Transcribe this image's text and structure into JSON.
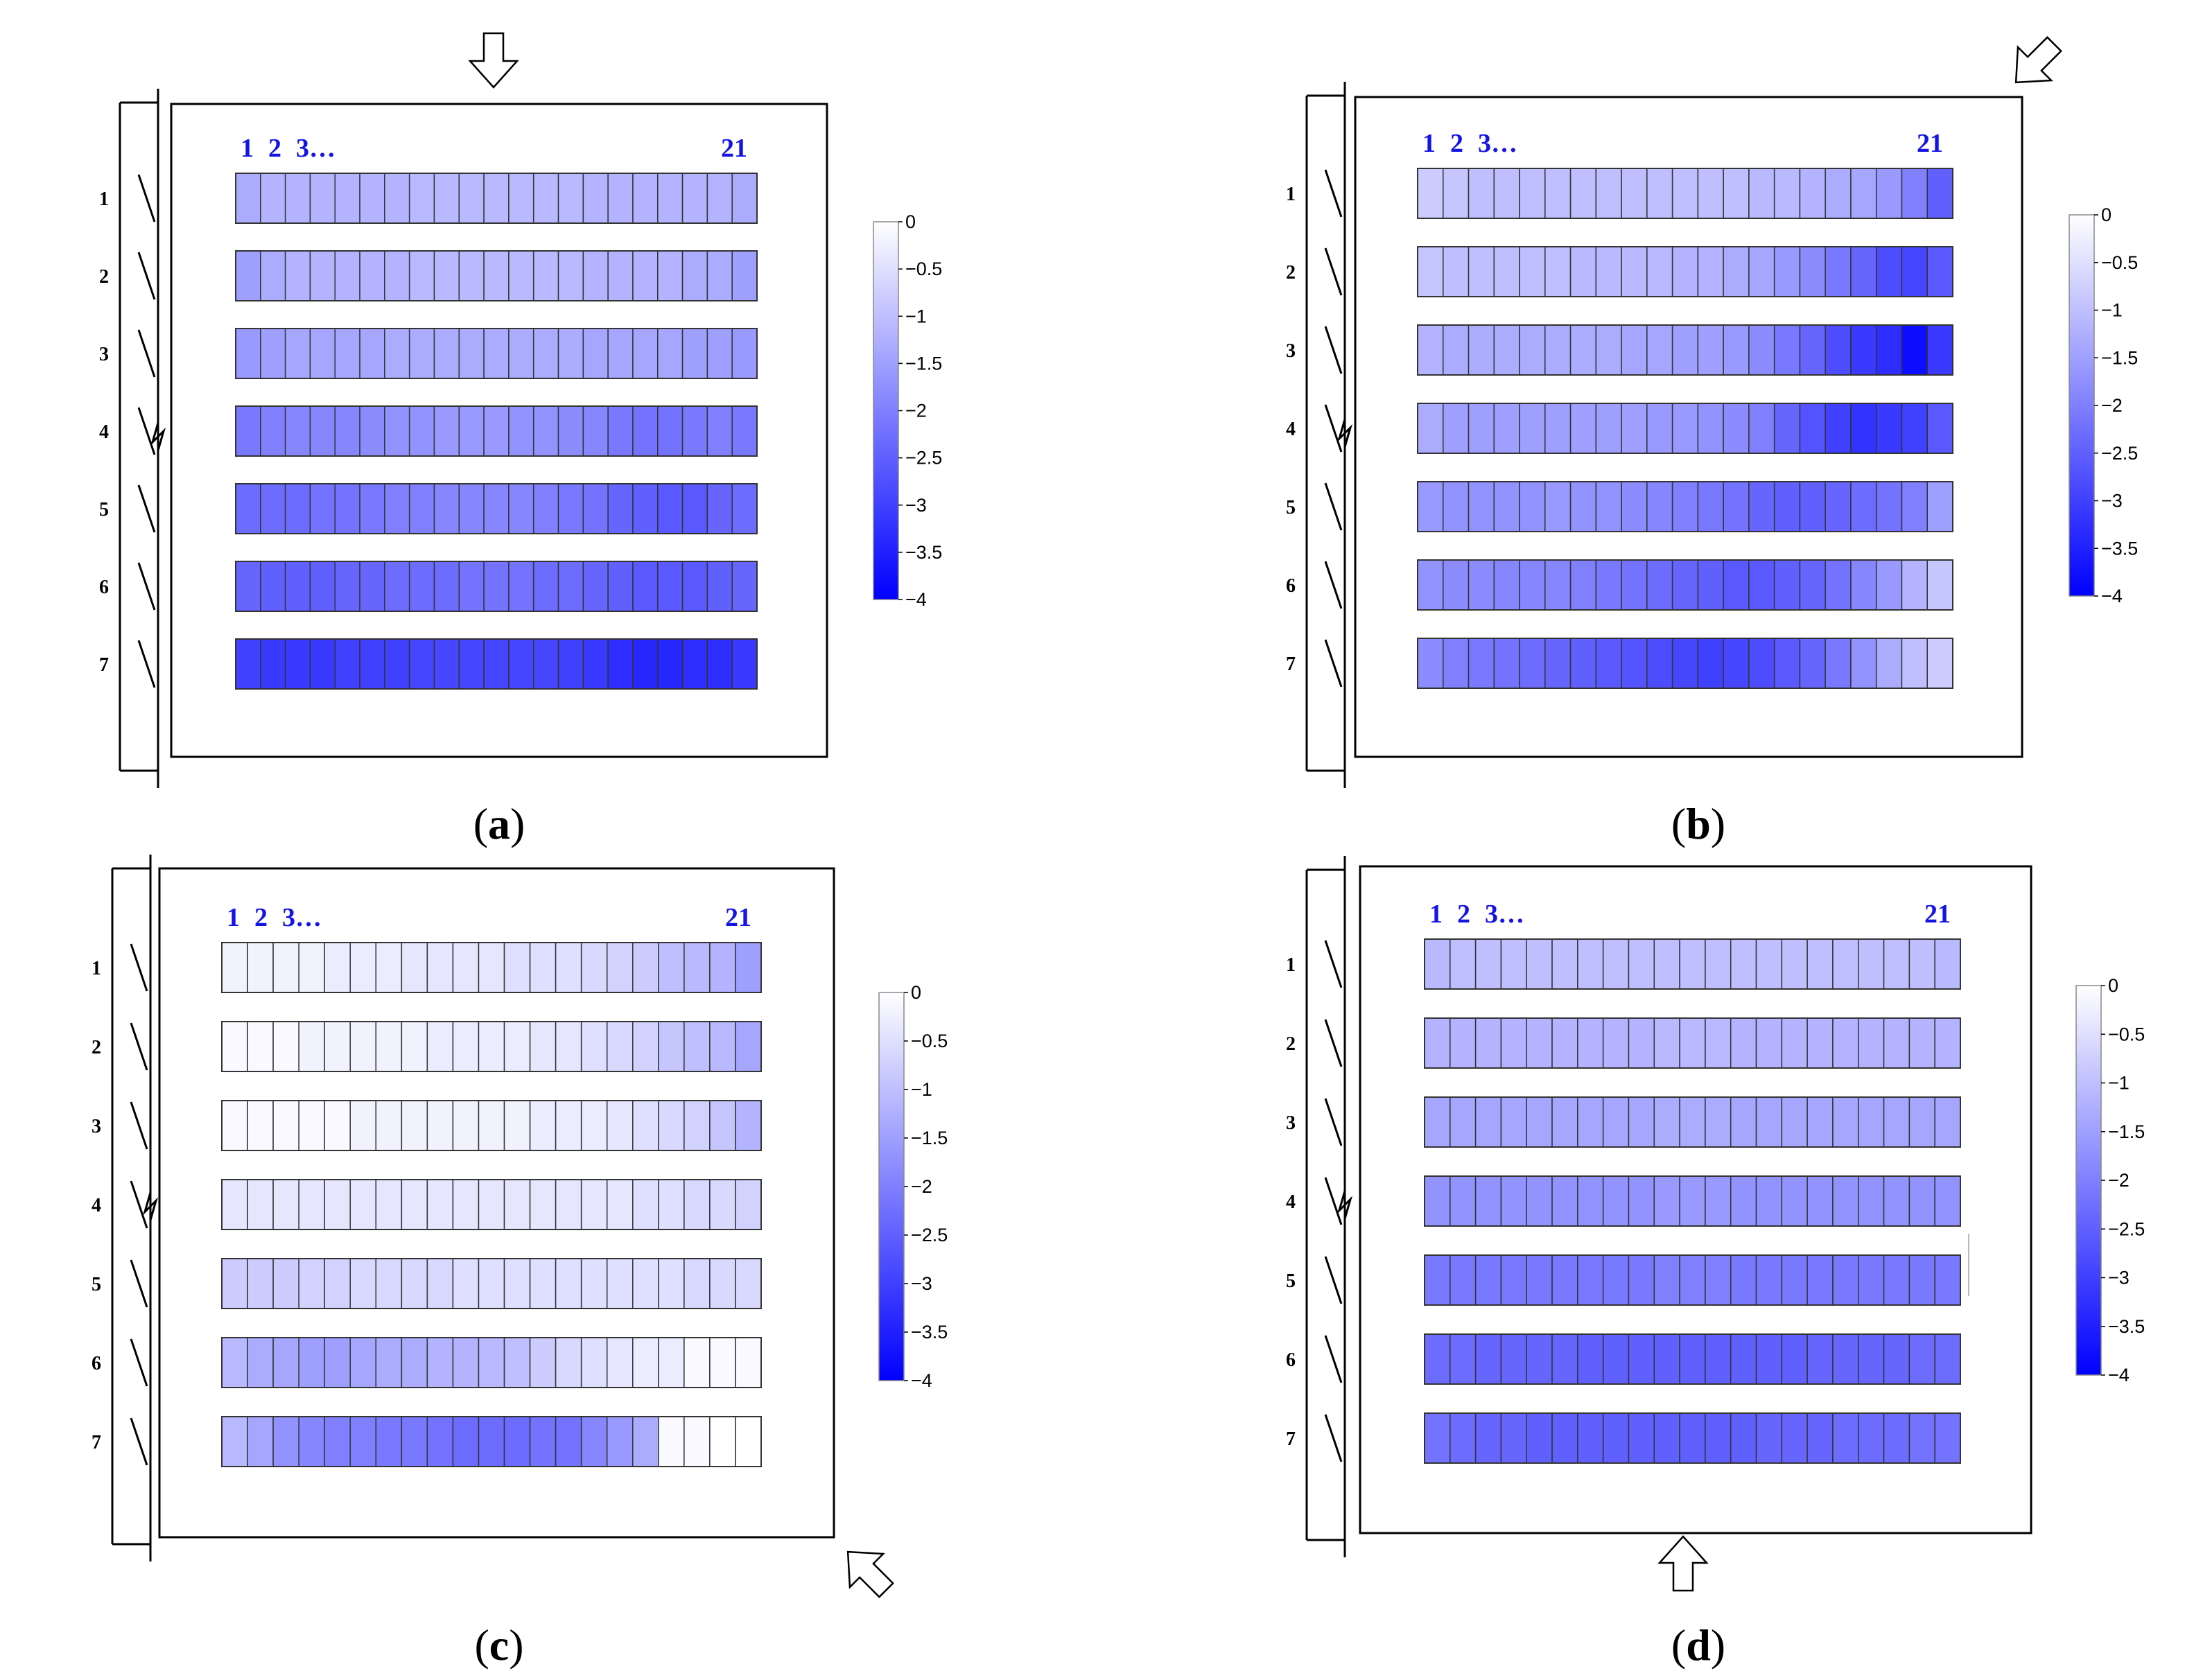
{
  "chart_data": [
    {
      "type": "heatmap",
      "panel_label": "a",
      "wind_arrow": "down",
      "row_labels": [
        "1",
        "2",
        "3",
        "4",
        "5",
        "6",
        "7"
      ],
      "column_labels": [
        "1",
        "2",
        "3…",
        "21"
      ],
      "colorbar": {
        "ticks": [
          "0",
          "−0.5",
          "−1",
          "−1.5",
          "−2",
          "−2.5",
          "−3",
          "−3.5",
          "−4"
        ],
        "min": -4,
        "max": 0,
        "low_color": "#0000ff",
        "high_color": "#ffffff"
      },
      "values": [
        [
          -1.3,
          -1.2,
          -1.2,
          -1.2,
          -1.2,
          -1.2,
          -1.2,
          -1.1,
          -1.1,
          -1.1,
          -1.1,
          -1.1,
          -1.1,
          -1.1,
          -1.2,
          -1.2,
          -1.2,
          -1.2,
          -1.2,
          -1.2,
          -1.3
        ],
        [
          -1.5,
          -1.3,
          -1.2,
          -1.2,
          -1.2,
          -1.2,
          -1.2,
          -1.1,
          -1.1,
          -1.1,
          -1.1,
          -1.1,
          -1.1,
          -1.1,
          -1.2,
          -1.2,
          -1.2,
          -1.2,
          -1.3,
          -1.3,
          -1.5
        ],
        [
          -1.6,
          -1.5,
          -1.4,
          -1.4,
          -1.4,
          -1.4,
          -1.3,
          -1.3,
          -1.3,
          -1.3,
          -1.3,
          -1.3,
          -1.3,
          -1.3,
          -1.4,
          -1.4,
          -1.4,
          -1.4,
          -1.5,
          -1.5,
          -1.6
        ],
        [
          -2.1,
          -2.0,
          -1.9,
          -1.9,
          -1.9,
          -1.8,
          -1.7,
          -1.7,
          -1.6,
          -1.6,
          -1.6,
          -1.7,
          -1.7,
          -1.8,
          -1.9,
          -2.1,
          -2.2,
          -2.2,
          -2.1,
          -2.0,
          -2.1
        ],
        [
          -2.3,
          -2.3,
          -2.3,
          -2.2,
          -2.2,
          -2.1,
          -2.0,
          -2.0,
          -1.9,
          -1.9,
          -1.9,
          -1.9,
          -2.0,
          -2.1,
          -2.2,
          -2.4,
          -2.5,
          -2.6,
          -2.6,
          -2.4,
          -2.3
        ],
        [
          -2.4,
          -2.5,
          -2.5,
          -2.5,
          -2.4,
          -2.4,
          -2.3,
          -2.3,
          -2.3,
          -2.2,
          -2.2,
          -2.2,
          -2.3,
          -2.3,
          -2.4,
          -2.5,
          -2.6,
          -2.6,
          -2.6,
          -2.5,
          -2.4
        ],
        [
          -3.0,
          -3.1,
          -3.1,
          -3.1,
          -3.0,
          -3.0,
          -3.0,
          -2.9,
          -2.9,
          -2.9,
          -2.9,
          -2.9,
          -2.9,
          -3.0,
          -3.1,
          -3.3,
          -3.4,
          -3.4,
          -3.3,
          -3.3,
          -3.1
        ]
      ]
    },
    {
      "type": "heatmap",
      "panel_label": "b",
      "wind_arrow": "down-left",
      "row_labels": [
        "1",
        "2",
        "3",
        "4",
        "5",
        "6",
        "7"
      ],
      "column_labels": [
        "1",
        "2",
        "3…",
        "21"
      ],
      "colorbar": {
        "ticks": [
          "0",
          "−0.5",
          "−1",
          "−1.5",
          "−2",
          "−2.5",
          "−3",
          "−3.5",
          "−4"
        ],
        "min": -4,
        "max": 0,
        "low_color": "#0000ff",
        "high_color": "#ffffff"
      },
      "values": [
        [
          -0.8,
          -0.9,
          -1.0,
          -1.0,
          -1.0,
          -1.0,
          -1.0,
          -1.0,
          -1.0,
          -1.0,
          -1.0,
          -1.0,
          -1.0,
          -1.1,
          -1.1,
          -1.2,
          -1.3,
          -1.4,
          -1.6,
          -2.0,
          -2.5
        ],
        [
          -0.9,
          -1.0,
          -1.0,
          -1.0,
          -1.0,
          -1.0,
          -1.1,
          -1.1,
          -1.1,
          -1.1,
          -1.2,
          -1.2,
          -1.3,
          -1.4,
          -1.6,
          -1.8,
          -2.1,
          -2.4,
          -2.8,
          -2.9,
          -2.6
        ],
        [
          -1.2,
          -1.3,
          -1.3,
          -1.3,
          -1.3,
          -1.3,
          -1.3,
          -1.3,
          -1.4,
          -1.4,
          -1.5,
          -1.5,
          -1.6,
          -1.8,
          -2.1,
          -2.4,
          -2.8,
          -3.1,
          -3.3,
          -3.8,
          -3.1
        ],
        [
          -1.3,
          -1.5,
          -1.5,
          -1.5,
          -1.5,
          -1.5,
          -1.5,
          -1.5,
          -1.5,
          -1.6,
          -1.6,
          -1.7,
          -1.8,
          -2.0,
          -2.4,
          -2.7,
          -3.0,
          -3.2,
          -3.1,
          -3.0,
          -2.6
        ],
        [
          -1.6,
          -1.7,
          -1.7,
          -1.7,
          -1.7,
          -1.6,
          -1.7,
          -1.7,
          -1.8,
          -1.9,
          -2.0,
          -2.1,
          -2.2,
          -2.4,
          -2.5,
          -2.5,
          -2.4,
          -2.3,
          -2.2,
          -2.0,
          -1.5
        ],
        [
          -1.7,
          -1.8,
          -1.8,
          -1.9,
          -1.9,
          -1.9,
          -2.0,
          -2.1,
          -2.2,
          -2.3,
          -2.4,
          -2.5,
          -2.6,
          -2.6,
          -2.5,
          -2.4,
          -2.2,
          -1.9,
          -1.6,
          -1.2,
          -0.9
        ],
        [
          -1.8,
          -2.0,
          -2.1,
          -2.2,
          -2.3,
          -2.4,
          -2.5,
          -2.6,
          -2.7,
          -2.8,
          -2.9,
          -3.0,
          -2.9,
          -2.8,
          -2.6,
          -2.4,
          -2.1,
          -1.7,
          -1.3,
          -1.0,
          -0.8
        ]
      ]
    },
    {
      "type": "heatmap",
      "panel_label": "c",
      "wind_arrow": "up-left",
      "row_labels": [
        "1",
        "2",
        "3",
        "4",
        "5",
        "6",
        "7"
      ],
      "column_labels": [
        "1",
        "2",
        "3…",
        "21"
      ],
      "colorbar": {
        "ticks": [
          "0",
          "−0.5",
          "−1",
          "−1.5",
          "−2",
          "−2.5",
          "−3",
          "−3.5",
          "−4"
        ],
        "min": -4,
        "max": 0,
        "low_color": "#0000ff",
        "high_color": "#ffffff"
      },
      "values": [
        [
          -0.2,
          -0.2,
          -0.2,
          -0.2,
          -0.3,
          -0.3,
          -0.3,
          -0.4,
          -0.4,
          -0.4,
          -0.4,
          -0.5,
          -0.5,
          -0.5,
          -0.6,
          -0.7,
          -0.8,
          -1.0,
          -1.1,
          -1.2,
          -1.5
        ],
        [
          -0.1,
          -0.1,
          -0.1,
          -0.2,
          -0.2,
          -0.2,
          -0.2,
          -0.2,
          -0.3,
          -0.3,
          -0.3,
          -0.3,
          -0.4,
          -0.4,
          -0.5,
          -0.6,
          -0.7,
          -0.9,
          -1.0,
          -1.1,
          -1.4
        ],
        [
          -0.1,
          -0.1,
          -0.1,
          -0.1,
          -0.1,
          -0.2,
          -0.2,
          -0.2,
          -0.2,
          -0.2,
          -0.2,
          -0.2,
          -0.3,
          -0.3,
          -0.3,
          -0.4,
          -0.5,
          -0.6,
          -0.7,
          -0.9,
          -1.2
        ],
        [
          -0.4,
          -0.4,
          -0.4,
          -0.4,
          -0.4,
          -0.4,
          -0.4,
          -0.4,
          -0.4,
          -0.4,
          -0.4,
          -0.4,
          -0.4,
          -0.4,
          -0.4,
          -0.4,
          -0.5,
          -0.5,
          -0.6,
          -0.6,
          -0.7
        ],
        [
          -0.8,
          -0.8,
          -0.8,
          -0.7,
          -0.7,
          -0.6,
          -0.6,
          -0.6,
          -0.6,
          -0.5,
          -0.5,
          -0.5,
          -0.5,
          -0.5,
          -0.5,
          -0.5,
          -0.5,
          -0.5,
          -0.6,
          -0.6,
          -0.6
        ],
        [
          -1.1,
          -1.3,
          -1.4,
          -1.5,
          -1.5,
          -1.4,
          -1.3,
          -1.3,
          -1.2,
          -1.2,
          -1.1,
          -1.0,
          -0.8,
          -0.6,
          -0.5,
          -0.4,
          -0.3,
          -0.3,
          -0.1,
          -0.1,
          -0.1
        ],
        [
          -1.1,
          -1.4,
          -1.7,
          -1.9,
          -2.0,
          -2.0,
          -2.1,
          -2.1,
          -2.2,
          -2.3,
          -2.3,
          -2.3,
          -2.2,
          -2.2,
          -1.9,
          -1.6,
          -1.3,
          -0.1,
          -0.1,
          0.0,
          0.0
        ]
      ]
    },
    {
      "type": "heatmap",
      "panel_label": "d",
      "wind_arrow": "up",
      "row_labels": [
        "1",
        "2",
        "3",
        "4",
        "5",
        "6",
        "7"
      ],
      "column_labels": [
        "1",
        "2",
        "3…",
        "21"
      ],
      "colorbar": {
        "ticks": [
          "0",
          "−0.5",
          "−1",
          "−1.5",
          "−2",
          "−2.5",
          "−3",
          "−3.5",
          "−4"
        ],
        "min": -4,
        "max": 0,
        "low_color": "#0000ff",
        "high_color": "#ffffff"
      },
      "values": [
        [
          -1.1,
          -1.0,
          -1.0,
          -1.0,
          -1.0,
          -1.0,
          -1.0,
          -1.0,
          -1.0,
          -1.0,
          -1.0,
          -1.0,
          -1.0,
          -1.0,
          -1.0,
          -1.0,
          -1.0,
          -1.0,
          -1.0,
          -1.0,
          -1.1
        ],
        [
          -1.2,
          -1.2,
          -1.2,
          -1.2,
          -1.2,
          -1.2,
          -1.2,
          -1.2,
          -1.2,
          -1.1,
          -1.1,
          -1.1,
          -1.2,
          -1.2,
          -1.2,
          -1.2,
          -1.2,
          -1.2,
          -1.2,
          -1.2,
          -1.2
        ],
        [
          -1.4,
          -1.4,
          -1.4,
          -1.4,
          -1.4,
          -1.4,
          -1.4,
          -1.4,
          -1.4,
          -1.3,
          -1.3,
          -1.3,
          -1.4,
          -1.4,
          -1.4,
          -1.4,
          -1.4,
          -1.4,
          -1.4,
          -1.4,
          -1.4
        ],
        [
          -1.7,
          -1.7,
          -1.7,
          -1.7,
          -1.7,
          -1.7,
          -1.7,
          -1.7,
          -1.7,
          -1.6,
          -1.6,
          -1.6,
          -1.7,
          -1.7,
          -1.7,
          -1.7,
          -1.7,
          -1.7,
          -1.7,
          -1.7,
          -1.7
        ],
        [
          -2.1,
          -2.1,
          -2.1,
          -2.1,
          -2.1,
          -2.1,
          -2.1,
          -2.1,
          -2.1,
          -2.0,
          -2.0,
          -2.0,
          -2.1,
          -2.1,
          -2.1,
          -2.1,
          -2.1,
          -2.1,
          -2.1,
          -2.1,
          -2.1
        ],
        [
          -2.3,
          -2.3,
          -2.4,
          -2.4,
          -2.4,
          -2.4,
          -2.5,
          -2.5,
          -2.5,
          -2.5,
          -2.5,
          -2.5,
          -2.5,
          -2.5,
          -2.5,
          -2.4,
          -2.4,
          -2.4,
          -2.4,
          -2.3,
          -2.3
        ],
        [
          -2.2,
          -2.3,
          -2.4,
          -2.4,
          -2.5,
          -2.5,
          -2.5,
          -2.5,
          -2.5,
          -2.5,
          -2.5,
          -2.5,
          -2.5,
          -2.4,
          -2.4,
          -2.4,
          -2.3,
          -2.3,
          -2.3,
          -2.2,
          -2.2
        ]
      ]
    }
  ]
}
